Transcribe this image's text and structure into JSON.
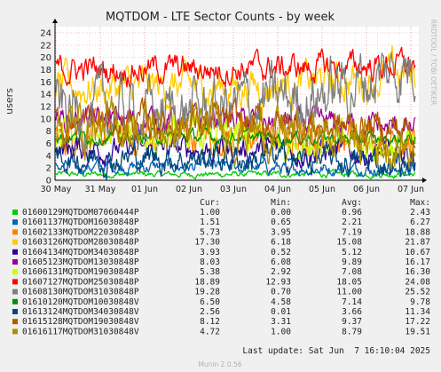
{
  "chart_data": {
    "type": "line",
    "title": "MQTDOM - LTE Sector Counts - by week",
    "ylabel": "users",
    "ylim": [
      0,
      25
    ],
    "yticks": [
      0,
      2,
      4,
      6,
      8,
      10,
      12,
      14,
      16,
      18,
      20,
      22,
      24
    ],
    "xlim": [
      "2025-05-30",
      "2025-06-07"
    ],
    "xticks": [
      "30 May",
      "31 May",
      "01 Jun",
      "02 Jun",
      "03 Jun",
      "04 Jun",
      "05 Jun",
      "06 Jun",
      "07 Jun"
    ],
    "grid": true,
    "legend_position": "bottom",
    "side_label": "RRDTOOL / TOBI OETIKER",
    "columns": [
      "Cur:",
      "Min:",
      "Avg:",
      "Max:"
    ],
    "series": [
      {
        "name": "01600129MQTDOM07060444P",
        "color": "#00cc00",
        "cur": "1.00",
        "min": "0.00",
        "avg": "0.96",
        "max": "2.43"
      },
      {
        "name": "01601137MQTDOM16030848P",
        "color": "#0066b3",
        "cur": "1.51",
        "min": "0.65",
        "avg": "2.21",
        "max": "6.27"
      },
      {
        "name": "01602133MQTDOM22030848P",
        "color": "#ff8000",
        "cur": "5.73",
        "min": "3.95",
        "avg": "7.19",
        "max": "18.88"
      },
      {
        "name": "01603126MQTDOM28030848P",
        "color": "#ffcc00",
        "cur": "17.30",
        "min": "6.18",
        "avg": "15.08",
        "max": "21.87"
      },
      {
        "name": "01604134MQTDOM34030848P",
        "color": "#330099",
        "cur": "3.93",
        "min": "0.52",
        "avg": "5.12",
        "max": "10.67"
      },
      {
        "name": "01605123MQTDOM13030848P",
        "color": "#990099",
        "cur": "8.03",
        "min": "6.08",
        "avg": "9.89",
        "max": "16.17"
      },
      {
        "name": "01606131MQTDOM19030848P",
        "color": "#ccff00",
        "cur": "5.38",
        "min": "2.92",
        "avg": "7.08",
        "max": "16.30"
      },
      {
        "name": "01607127MQTDOM25030848P",
        "color": "#ff0000",
        "cur": "18.89",
        "min": "12.93",
        "avg": "18.05",
        "max": "24.08"
      },
      {
        "name": "01608130MQTDOM31030848P",
        "color": "#808080",
        "cur": "19.28",
        "min": "0.70",
        "avg": "11.00",
        "max": "25.52"
      },
      {
        "name": "01610120MQTDOM10030848V",
        "color": "#008f00",
        "cur": "6.50",
        "min": "4.58",
        "avg": "7.14",
        "max": "9.78"
      },
      {
        "name": "01613124MQTDOM34030848V",
        "color": "#00487d",
        "cur": "2.56",
        "min": "0.01",
        "avg": "3.66",
        "max": "11.34"
      },
      {
        "name": "01615128MQTDOM19030848V",
        "color": "#b35a00",
        "cur": "8.12",
        "min": "3.31",
        "avg": "9.37",
        "max": "17.22"
      },
      {
        "name": "01616117MQTDOM31030848V",
        "color": "#b38f00",
        "cur": "4.72",
        "min": "1.00",
        "avg": "8.79",
        "max": "19.51"
      }
    ]
  },
  "footer": {
    "last_update": "Last update: Sat Jun  7 16:10:04 2025",
    "munin_version": "Munin 2.0.56"
  }
}
